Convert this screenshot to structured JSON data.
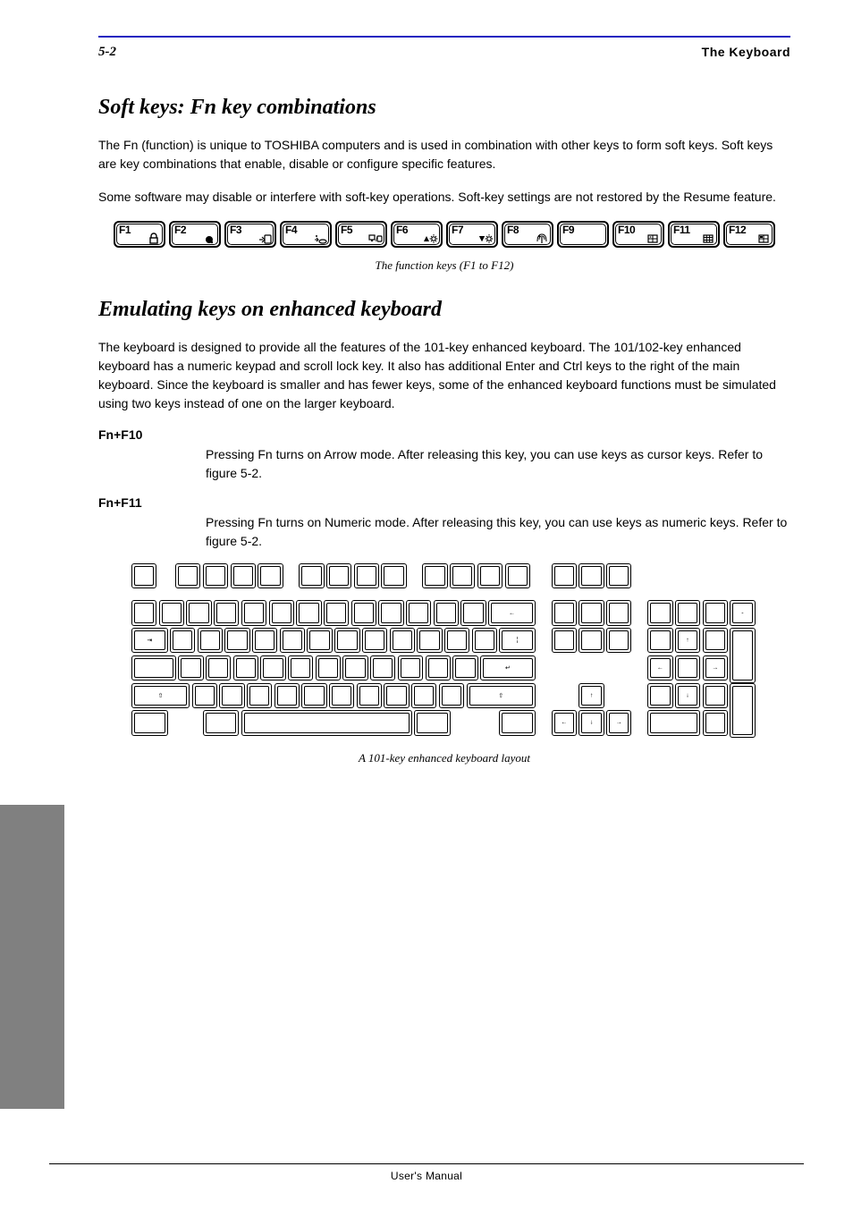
{
  "colors": {
    "rule": "#2020c0",
    "sidebar": "#808080",
    "text": "#000000",
    "bg": "#ffffff"
  },
  "header": {
    "page_number": "5-2",
    "chapter": "The Keyboard"
  },
  "section1": {
    "title": "Soft keys: Fn key combinations",
    "para1": "The Fn (function) is unique to TOSHIBA computers and is used in combination with other keys to form soft keys. Soft keys are key combinations that enable, disable or configure specific features.",
    "para2": "Some software may disable or interfere with soft-key operations. Soft-key settings are not restored by the Resume feature."
  },
  "fkeys": [
    {
      "label": "F1",
      "icon": "lock"
    },
    {
      "label": "F2",
      "icon": "power"
    },
    {
      "label": "F3",
      "icon": "sleep"
    },
    {
      "label": "F4",
      "icon": "hibernate"
    },
    {
      "label": "F5",
      "icon": "display"
    },
    {
      "label": "F6",
      "icon": "bright-down"
    },
    {
      "label": "F7",
      "icon": "bright-up"
    },
    {
      "label": "F8",
      "icon": "wireless"
    },
    {
      "label": "F9",
      "icon": ""
    },
    {
      "label": "F10",
      "icon": "overlay1"
    },
    {
      "label": "F11",
      "icon": "overlay2"
    },
    {
      "label": "F12",
      "icon": "overlay3"
    }
  ],
  "figure1_caption": "The function keys (F1 to F12)",
  "subsection": {
    "title": "Emulating keys on enhanced keyboard",
    "para": "The keyboard is designed to provide all the features of the 101-key enhanced keyboard. The 101/102-key enhanced keyboard has a numeric keypad and scroll lock key. It also has additional Enter and Ctrl keys to the right of the main keyboard. Since the keyboard is smaller and has fewer keys, some of the enhanced keyboard functions must be simulated using two keys instead of one on the larger keyboard.",
    "definitions": [
      {
        "term": "Fn+F10",
        "desc": "Pressing Fn turns on Arrow mode. After releasing this key, you can use keys as cursor keys. Refer to figure 5-2."
      },
      {
        "term": "Fn+F11",
        "desc": "Pressing Fn turns on Numeric mode. After releasing this key, you can use keys as numeric keys. Refer to figure 5-2."
      }
    ]
  },
  "figure2_caption": "A 101-key enhanced keyboard layout",
  "keyboard_layout": {
    "type": "diagram",
    "key_height": 26,
    "gap": 2,
    "row_gap": 2,
    "stroke": "#000000",
    "unit": 26,
    "rows": [
      {
        "y": 0,
        "keys": [
          {
            "x": 0,
            "w": 1
          },
          {
            "x": 1.6,
            "w": 1
          },
          {
            "x": 2.6,
            "w": 1
          },
          {
            "x": 3.6,
            "w": 1
          },
          {
            "x": 4.6,
            "w": 1
          },
          {
            "x": 6.1,
            "w": 1
          },
          {
            "x": 7.1,
            "w": 1
          },
          {
            "x": 8.1,
            "w": 1
          },
          {
            "x": 9.1,
            "w": 1
          },
          {
            "x": 10.6,
            "w": 1
          },
          {
            "x": 11.6,
            "w": 1
          },
          {
            "x": 12.6,
            "w": 1
          },
          {
            "x": 13.6,
            "w": 1
          },
          {
            "x": 15.3,
            "w": 1
          },
          {
            "x": 16.3,
            "w": 1
          },
          {
            "x": 17.3,
            "w": 1
          }
        ]
      },
      {
        "y": 1.35,
        "keys": [
          {
            "x": 0,
            "w": 1
          },
          {
            "x": 1,
            "w": 1
          },
          {
            "x": 2,
            "w": 1
          },
          {
            "x": 3,
            "w": 1
          },
          {
            "x": 4,
            "w": 1
          },
          {
            "x": 5,
            "w": 1
          },
          {
            "x": 6,
            "w": 1
          },
          {
            "x": 7,
            "w": 1
          },
          {
            "x": 8,
            "w": 1
          },
          {
            "x": 9,
            "w": 1
          },
          {
            "x": 10,
            "w": 1
          },
          {
            "x": 11,
            "w": 1
          },
          {
            "x": 12,
            "w": 1
          },
          {
            "x": 13,
            "w": 1.8,
            "glyph": "←"
          },
          {
            "x": 15.3,
            "w": 1
          },
          {
            "x": 16.3,
            "w": 1
          },
          {
            "x": 17.3,
            "w": 1
          },
          {
            "x": 18.8,
            "w": 1
          },
          {
            "x": 19.8,
            "w": 1
          },
          {
            "x": 20.8,
            "w": 1
          },
          {
            "x": 21.8,
            "w": 1,
            "glyph": "-"
          }
        ]
      },
      {
        "y": 2.35,
        "keys": [
          {
            "x": 0,
            "w": 1.4,
            "glyph": "⇥"
          },
          {
            "x": 1.4,
            "w": 1
          },
          {
            "x": 2.4,
            "w": 1
          },
          {
            "x": 3.4,
            "w": 1
          },
          {
            "x": 4.4,
            "w": 1
          },
          {
            "x": 5.4,
            "w": 1
          },
          {
            "x": 6.4,
            "w": 1
          },
          {
            "x": 7.4,
            "w": 1
          },
          {
            "x": 8.4,
            "w": 1
          },
          {
            "x": 9.4,
            "w": 1
          },
          {
            "x": 10.4,
            "w": 1
          },
          {
            "x": 11.4,
            "w": 1
          },
          {
            "x": 12.4,
            "w": 1
          },
          {
            "x": 13.4,
            "w": 1.4,
            "glyph": "¦"
          },
          {
            "x": 15.3,
            "w": 1
          },
          {
            "x": 16.3,
            "w": 1
          },
          {
            "x": 17.3,
            "w": 1
          },
          {
            "x": 18.8,
            "w": 1
          },
          {
            "x": 19.8,
            "w": 1,
            "glyph": "↑"
          },
          {
            "x": 20.8,
            "w": 1
          },
          {
            "x": 21.8,
            "w": 1,
            "h": 2
          }
        ]
      },
      {
        "y": 3.35,
        "keys": [
          {
            "x": 0,
            "w": 1.7
          },
          {
            "x": 1.7,
            "w": 1
          },
          {
            "x": 2.7,
            "w": 1
          },
          {
            "x": 3.7,
            "w": 1
          },
          {
            "x": 4.7,
            "w": 1
          },
          {
            "x": 5.7,
            "w": 1
          },
          {
            "x": 6.7,
            "w": 1
          },
          {
            "x": 7.7,
            "w": 1
          },
          {
            "x": 8.7,
            "w": 1
          },
          {
            "x": 9.7,
            "w": 1
          },
          {
            "x": 10.7,
            "w": 1
          },
          {
            "x": 11.7,
            "w": 1
          },
          {
            "x": 12.7,
            "w": 2.1,
            "glyph": "↵"
          },
          {
            "x": 18.8,
            "w": 1,
            "glyph": "←"
          },
          {
            "x": 19.8,
            "w": 1
          },
          {
            "x": 20.8,
            "w": 1,
            "glyph": "→"
          }
        ]
      },
      {
        "y": 4.35,
        "keys": [
          {
            "x": 0,
            "w": 2.2,
            "glyph": "⇧"
          },
          {
            "x": 2.2,
            "w": 1
          },
          {
            "x": 3.2,
            "w": 1
          },
          {
            "x": 4.2,
            "w": 1
          },
          {
            "x": 5.2,
            "w": 1
          },
          {
            "x": 6.2,
            "w": 1
          },
          {
            "x": 7.2,
            "w": 1
          },
          {
            "x": 8.2,
            "w": 1
          },
          {
            "x": 9.2,
            "w": 1
          },
          {
            "x": 10.2,
            "w": 1
          },
          {
            "x": 11.2,
            "w": 1
          },
          {
            "x": 12.2,
            "w": 2.6,
            "glyph": "⇧"
          },
          {
            "x": 16.3,
            "w": 1,
            "glyph": "↑"
          },
          {
            "x": 18.8,
            "w": 1
          },
          {
            "x": 19.8,
            "w": 1,
            "glyph": "↓"
          },
          {
            "x": 20.8,
            "w": 1
          },
          {
            "x": 21.8,
            "w": 1,
            "h": 2
          }
        ]
      },
      {
        "y": 5.35,
        "keys": [
          {
            "x": 0,
            "w": 1.4
          },
          {
            "x": 2.6,
            "w": 1.4
          },
          {
            "x": 4,
            "w": 6.3
          },
          {
            "x": 10.3,
            "w": 1.4
          },
          {
            "x": 13.4,
            "w": 1.4
          },
          {
            "x": 15.3,
            "w": 1,
            "glyph": "←"
          },
          {
            "x": 16.3,
            "w": 1,
            "glyph": "↓"
          },
          {
            "x": 17.3,
            "w": 1,
            "glyph": "→"
          },
          {
            "x": 18.8,
            "w": 2
          },
          {
            "x": 20.8,
            "w": 1
          }
        ]
      }
    ]
  },
  "footer": "User's Manual"
}
